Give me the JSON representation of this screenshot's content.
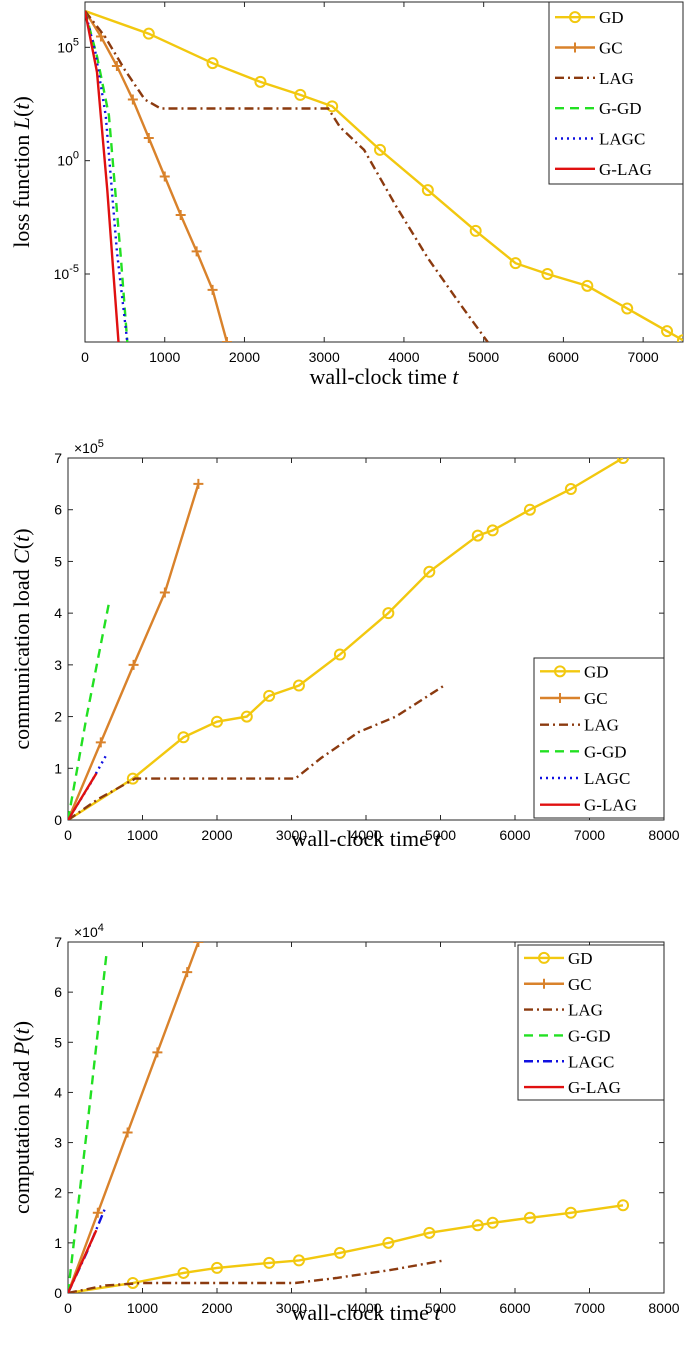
{
  "chart_data": [
    {
      "type": "line",
      "xlabel": "wall-clock time t",
      "ylabel": "loss function L(t)",
      "yscale": "log",
      "xlim": [
        0,
        7500
      ],
      "ylim": [
        1e-08,
        10000000.0
      ],
      "x_ticks": [
        "0",
        "1000",
        "2000",
        "3000",
        "4000",
        "5000",
        "6000",
        "7000"
      ],
      "y_ticks": [
        {
          "value": 100000,
          "base": "10",
          "exp": "5"
        },
        {
          "value": 1,
          "base": "10",
          "exp": "0"
        },
        {
          "value": 1e-05,
          "base": "10",
          "exp": "-5"
        }
      ],
      "legend_position": "top-right",
      "series": [
        {
          "name": "GD",
          "color": "#f2c80f",
          "dash": "solid",
          "marker": "circle",
          "points": [
            [
              0,
              4000000
            ],
            [
              800,
              400000
            ],
            [
              1600,
              20000
            ],
            [
              2200,
              3000
            ],
            [
              2700,
              800
            ],
            [
              3100,
              250
            ],
            [
              3700,
              3
            ],
            [
              4300,
              0.05
            ],
            [
              4900,
              0.0008
            ],
            [
              5400,
              3e-05
            ],
            [
              5800,
              1e-05
            ],
            [
              6300,
              3e-06
            ],
            [
              6800,
              3e-07
            ],
            [
              7300,
              3e-08
            ],
            [
              7500,
              1.2e-08
            ]
          ]
        },
        {
          "name": "GC",
          "color": "#d9822b",
          "dash": "solid",
          "marker": "plus",
          "points": [
            [
              0,
              4000000
            ],
            [
              200,
              300000
            ],
            [
              400,
              15000
            ],
            [
              600,
              500
            ],
            [
              800,
              10
            ],
            [
              1000,
              0.2
            ],
            [
              1200,
              0.004
            ],
            [
              1400,
              0.0001
            ],
            [
              1600,
              2e-06
            ],
            [
              1780,
              1e-08
            ]
          ]
        },
        {
          "name": "LAG",
          "color": "#8b3a0f",
          "dash": "dashdot",
          "points": [
            [
              0,
              4000000
            ],
            [
              250,
              300000
            ],
            [
              500,
              10000
            ],
            [
              750,
              500
            ],
            [
              950,
              200
            ],
            [
              2000,
              200
            ],
            [
              3050,
              200
            ],
            [
              3200,
              30
            ],
            [
              3500,
              3
            ],
            [
              3900,
              0.01
            ],
            [
              4300,
              5e-05
            ],
            [
              4700,
              5e-07
            ],
            [
              5050,
              1e-08
            ]
          ]
        },
        {
          "name": "G-GD",
          "color": "#22e022",
          "dash": "dash",
          "points": [
            [
              0,
              4000000
            ],
            [
              150,
              40000
            ],
            [
              300,
              100
            ],
            [
              450,
              5e-05
            ],
            [
              530,
              1e-08
            ]
          ]
        },
        {
          "name": "LAGC",
          "color": "#1010e0",
          "dash": "dot",
          "points": [
            [
              0,
              4000000
            ],
            [
              130,
              60000
            ],
            [
              260,
              100
            ],
            [
              400,
              0.0001
            ],
            [
              530,
              1e-08
            ]
          ]
        },
        {
          "name": "G-LAG",
          "color": "#e01010",
          "dash": "solid",
          "points": [
            [
              0,
              4000000
            ],
            [
              150,
              8000
            ],
            [
              280,
              0.05
            ],
            [
              420,
              1e-08
            ]
          ]
        }
      ]
    },
    {
      "type": "line",
      "xlabel": "wall-clock time t",
      "ylabel": "communication load C(t)",
      "xlim": [
        0,
        8000
      ],
      "ylim": [
        0,
        7
      ],
      "multiplier": {
        "base": "×10",
        "exp": "5"
      },
      "x_ticks": [
        "0",
        "1000",
        "2000",
        "3000",
        "4000",
        "5000",
        "6000",
        "7000",
        "8000"
      ],
      "y_ticks": [
        "0",
        "1",
        "2",
        "3",
        "4",
        "5",
        "6",
        "7"
      ],
      "legend_position": "middle-right",
      "series": [
        {
          "name": "GD",
          "color": "#f2c80f",
          "dash": "solid",
          "marker": "circle",
          "points": [
            [
              0,
              0
            ],
            [
              870,
              0.8
            ],
            [
              1550,
              1.6
            ],
            [
              2000,
              1.9
            ],
            [
              2400,
              2
            ],
            [
              2700,
              2.4
            ],
            [
              3100,
              2.6
            ],
            [
              3650,
              3.2
            ],
            [
              4300,
              4
            ],
            [
              4850,
              4.8
            ],
            [
              5500,
              5.5
            ],
            [
              5700,
              5.6
            ],
            [
              6200,
              6
            ],
            [
              6750,
              6.4
            ],
            [
              7450,
              7
            ]
          ]
        },
        {
          "name": "GC",
          "color": "#d9822b",
          "dash": "solid",
          "marker": "plus",
          "points": [
            [
              0,
              0
            ],
            [
              440,
              1.5
            ],
            [
              880,
              3
            ],
            [
              1300,
              4.4
            ],
            [
              1750,
              6.5
            ]
          ]
        },
        {
          "name": "LAG",
          "color": "#8b3a0f",
          "dash": "dashdot",
          "points": [
            [
              0,
              0
            ],
            [
              400,
              0.4
            ],
            [
              900,
              0.8
            ],
            [
              2000,
              0.8
            ],
            [
              3050,
              0.8
            ],
            [
              3400,
              1.2
            ],
            [
              3900,
              1.7
            ],
            [
              4400,
              2
            ],
            [
              5050,
              2.6
            ]
          ]
        },
        {
          "name": "G-GD",
          "color": "#22e022",
          "dash": "dash",
          "points": [
            [
              0,
              0
            ],
            [
              250,
              2
            ],
            [
              550,
              4.2
            ]
          ]
        },
        {
          "name": "LAGC",
          "color": "#1010e0",
          "dash": "dot",
          "points": [
            [
              0,
              0
            ],
            [
              300,
              0.7
            ],
            [
              530,
              1.3
            ]
          ]
        },
        {
          "name": "G-LAG",
          "color": "#e01010",
          "dash": "solid",
          "points": [
            [
              0,
              0
            ],
            [
              380,
              0.9
            ]
          ]
        }
      ]
    },
    {
      "type": "line",
      "xlabel": "wall-clock time t",
      "ylabel": "computation load P(t)",
      "xlim": [
        0,
        8000
      ],
      "ylim": [
        0,
        7
      ],
      "multiplier": {
        "base": "×10",
        "exp": "4"
      },
      "x_ticks": [
        "0",
        "1000",
        "2000",
        "3000",
        "4000",
        "5000",
        "6000",
        "7000",
        "8000"
      ],
      "y_ticks": [
        "0",
        "1",
        "2",
        "3",
        "4",
        "5",
        "6",
        "7"
      ],
      "legend_position": "top-right",
      "series": [
        {
          "name": "GD",
          "color": "#f2c80f",
          "dash": "solid",
          "marker": "circle",
          "points": [
            [
              0,
              0
            ],
            [
              870,
              0.2
            ],
            [
              1550,
              0.4
            ],
            [
              2000,
              0.5
            ],
            [
              2700,
              0.6
            ],
            [
              3100,
              0.65
            ],
            [
              3650,
              0.8
            ],
            [
              4300,
              1
            ],
            [
              4850,
              1.2
            ],
            [
              5500,
              1.35
            ],
            [
              5700,
              1.4
            ],
            [
              6200,
              1.5
            ],
            [
              6750,
              1.6
            ],
            [
              7450,
              1.75
            ]
          ]
        },
        {
          "name": "GC",
          "color": "#d9822b",
          "dash": "solid",
          "marker": "plus",
          "points": [
            [
              0,
              0
            ],
            [
              400,
              1.6
            ],
            [
              800,
              3.2
            ],
            [
              1200,
              4.8
            ],
            [
              1600,
              6.4
            ],
            [
              1750,
              7
            ]
          ]
        },
        {
          "name": "LAG",
          "color": "#8b3a0f",
          "dash": "dashdot",
          "points": [
            [
              0,
              0
            ],
            [
              500,
              0.15
            ],
            [
              1000,
              0.2
            ],
            [
              2000,
              0.2
            ],
            [
              3050,
              0.2
            ],
            [
              3600,
              0.3
            ],
            [
              4300,
              0.45
            ],
            [
              5050,
              0.65
            ]
          ]
        },
        {
          "name": "G-GD",
          "color": "#22e022",
          "dash": "dash",
          "points": [
            [
              0,
              0
            ],
            [
              250,
              3.2
            ],
            [
              520,
              6.8
            ]
          ]
        },
        {
          "name": "LAGC",
          "color": "#1010e0",
          "dash": "dashdot",
          "points": [
            [
              0,
              0
            ],
            [
              250,
              0.8
            ],
            [
              500,
              1.7
            ]
          ]
        },
        {
          "name": "G-LAG",
          "color": "#e01010",
          "dash": "solid",
          "points": [
            [
              0,
              0
            ],
            [
              380,
              1.25
            ]
          ]
        }
      ]
    }
  ]
}
